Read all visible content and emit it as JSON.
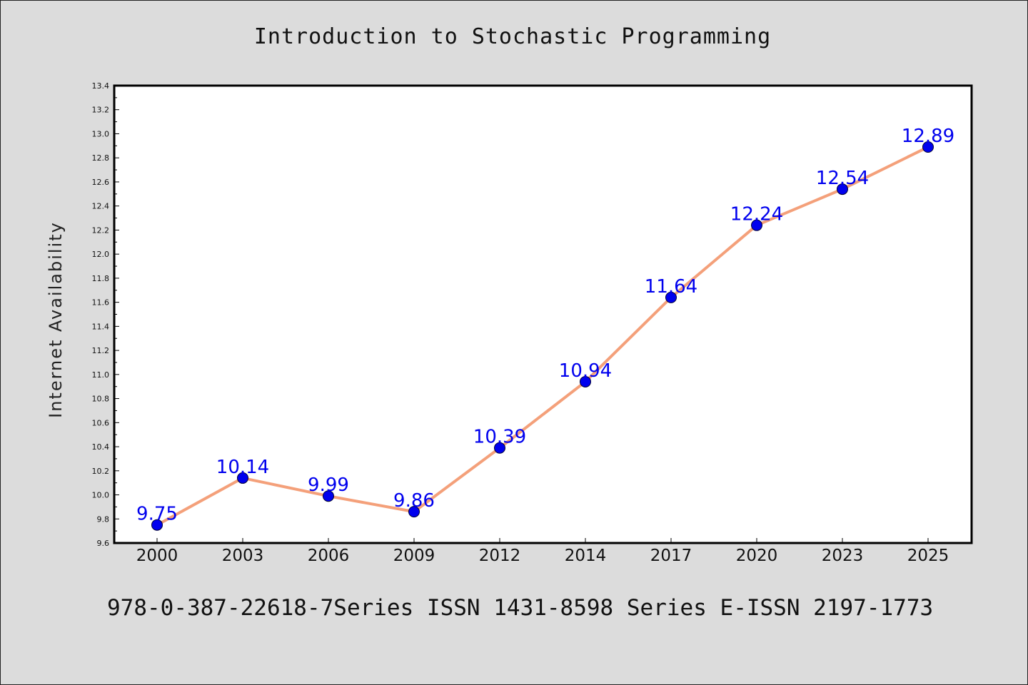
{
  "chart_data": {
    "type": "line",
    "title": "Introduction to Stochastic Programming",
    "ylabel": "Internet Availability",
    "xlabel": "",
    "categories": [
      "2000",
      "2003",
      "2006",
      "2009",
      "2012",
      "2014",
      "2017",
      "2020",
      "2023",
      "2025"
    ],
    "series": [
      {
        "values": [
          9.75,
          10.14,
          9.99,
          9.86,
          10.39,
          10.94,
          11.64,
          12.24,
          12.54,
          12.89
        ],
        "data_labels": [
          "9.75",
          "10.14",
          "9.99",
          "9.86",
          "10.39",
          "10.94",
          "11.64",
          "12.24",
          "12.54",
          "12.89"
        ]
      }
    ],
    "ylim": [
      9.6,
      13.4
    ],
    "yticks": [
      "9.6",
      "9.8",
      "10.0",
      "10.2",
      "10.4",
      "10.6",
      "10.8",
      "11.0",
      "11.2",
      "11.4",
      "11.6",
      "11.8",
      "12.0",
      "12.2",
      "12.4",
      "12.6",
      "12.8",
      "13.0",
      "13.2",
      "13.4"
    ],
    "grid": false,
    "colors": {
      "line": "#f4a07a",
      "marker": "#0000ee",
      "label": "#0000ee",
      "plot_background": "#ffffff",
      "figure_background": "#dcdcdc"
    }
  },
  "footer": "978-0-387-22618-7Series ISSN 1431-8598 Series E-ISSN 2197-1773"
}
